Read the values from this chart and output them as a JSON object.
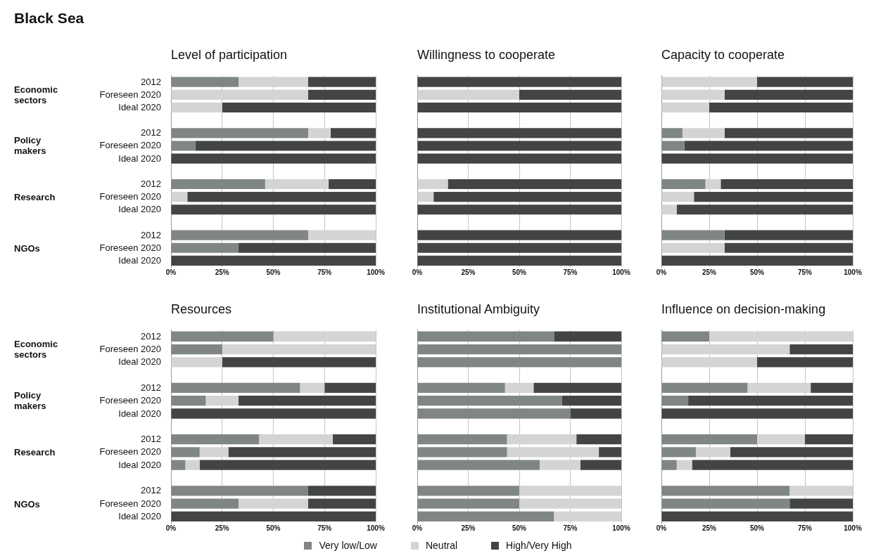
{
  "chart_data": [
    {
      "type": "other",
      "title": "Black Sea"
    },
    {
      "type": "bar",
      "title": "Level of participation",
      "orientation": "horizontal",
      "stacked": true,
      "grid": "x",
      "categories": [
        "2012",
        "Foreseen 2020",
        "Ideal 2020",
        null,
        "2012",
        "Foreseen 2020",
        "Ideal 2020",
        null,
        "2012",
        "Foreseen 2020",
        "Ideal 2020",
        null,
        "2012",
        "Foreseen 2020",
        "Ideal 2020"
      ],
      "annotations": [
        "Economic sectors",
        "Policy makers",
        "Research",
        "NGOs"
      ],
      "xlim": [
        0,
        100
      ],
      "xticks": [
        {
          "value": 0,
          "label": "0%"
        },
        {
          "value": 25,
          "label": "25%"
        },
        {
          "value": 50,
          "label": "50%"
        },
        {
          "value": 75,
          "label": "75%"
        },
        {
          "value": 100,
          "label": "100%"
        }
      ],
      "legend": false,
      "series": [
        {
          "color": "#808686",
          "values": [
            33,
            0,
            0,
            null,
            67,
            12,
            0,
            null,
            46,
            0,
            0,
            null,
            67,
            33,
            0
          ]
        },
        {
          "color": "#d4d4d4",
          "values": [
            34,
            67,
            25,
            null,
            11,
            0,
            0,
            null,
            31,
            8,
            0,
            null,
            33,
            0,
            0
          ]
        },
        {
          "color": "#434544",
          "values": [
            33,
            33,
            75,
            null,
            22,
            88,
            100,
            null,
            23,
            92,
            100,
            null,
            0,
            67,
            100
          ]
        }
      ]
    },
    {
      "type": "bar",
      "title": "Willingness to cooperate",
      "orientation": "horizontal",
      "stacked": true,
      "grid": "x",
      "tick_labels": "x",
      "categories": [
        null,
        null,
        null,
        null,
        null,
        null,
        null,
        null,
        null,
        null,
        null,
        null,
        null,
        null,
        null
      ],
      "xlim": [
        0,
        100
      ],
      "xticks": [
        {
          "value": 0,
          "label": "0%"
        },
        {
          "value": 25,
          "label": "25%"
        },
        {
          "value": 50,
          "label": "50%"
        },
        {
          "value": 75,
          "label": "75%"
        },
        {
          "value": 100,
          "label": "100%"
        }
      ],
      "legend": false,
      "series": [
        {
          "color": "#808686",
          "values": [
            0,
            0,
            0,
            null,
            0,
            0,
            0,
            null,
            0,
            0,
            0,
            null,
            0,
            0,
            0
          ]
        },
        {
          "color": "#d4d4d4",
          "values": [
            0,
            50,
            0,
            null,
            0,
            0,
            0,
            null,
            15,
            8,
            0,
            null,
            0,
            0,
            0
          ]
        },
        {
          "color": "#434544",
          "values": [
            100,
            50,
            100,
            null,
            100,
            100,
            100,
            null,
            85,
            92,
            100,
            null,
            100,
            100,
            100
          ]
        }
      ]
    },
    {
      "type": "bar",
      "title": "Capacity to cooperate",
      "orientation": "horizontal",
      "stacked": true,
      "grid": "x",
      "tick_labels": "x",
      "categories": [
        null,
        null,
        null,
        null,
        null,
        null,
        null,
        null,
        null,
        null,
        null,
        null,
        null,
        null,
        null
      ],
      "xlim": [
        0,
        100
      ],
      "xticks": [
        {
          "value": 0,
          "label": "0%"
        },
        {
          "value": 25,
          "label": "25%"
        },
        {
          "value": 50,
          "label": "50%"
        },
        {
          "value": 75,
          "label": "75%"
        },
        {
          "value": 100,
          "label": "100%"
        }
      ],
      "legend": false,
      "series": [
        {
          "color": "#808686",
          "values": [
            0,
            0,
            0,
            null,
            11,
            12,
            0,
            null,
            23,
            0,
            0,
            null,
            33,
            0,
            0
          ]
        },
        {
          "color": "#d4d4d4",
          "values": [
            50,
            33,
            25,
            null,
            22,
            0,
            0,
            null,
            8,
            17,
            8,
            null,
            0,
            33,
            0
          ]
        },
        {
          "color": "#434544",
          "values": [
            50,
            67,
            75,
            null,
            67,
            88,
            100,
            null,
            69,
            83,
            92,
            null,
            67,
            67,
            100
          ]
        }
      ]
    },
    {
      "type": "bar",
      "title": "Resources",
      "orientation": "horizontal",
      "stacked": true,
      "grid": "x",
      "categories": [
        "2012",
        "Foreseen 2020",
        "Ideal 2020",
        null,
        "2012",
        "Foreseen 2020",
        "Ideal 2020",
        null,
        "2012",
        "Foreseen 2020",
        "Ideal 2020",
        null,
        "2012",
        "Foreseen 2020",
        "Ideal 2020"
      ],
      "annotations": [
        "Economic sectors",
        "Policy makers",
        "Research",
        "NGOs"
      ],
      "xlim": [
        0,
        100
      ],
      "xticks": [
        {
          "value": 0,
          "label": "0%"
        },
        {
          "value": 25,
          "label": "25%"
        },
        {
          "value": 50,
          "label": "50%"
        },
        {
          "value": 75,
          "label": "75%"
        },
        {
          "value": 100,
          "label": "100%"
        }
      ],
      "legend": false,
      "series": [
        {
          "color": "#808686",
          "values": [
            50,
            25,
            0,
            null,
            63,
            17,
            0,
            null,
            43,
            14,
            7,
            null,
            67,
            33,
            0
          ]
        },
        {
          "color": "#d4d4d4",
          "values": [
            50,
            75,
            25,
            null,
            12,
            16,
            0,
            null,
            36,
            14,
            7,
            null,
            0,
            34,
            0
          ]
        },
        {
          "color": "#434544",
          "values": [
            0,
            0,
            75,
            null,
            25,
            67,
            100,
            null,
            21,
            72,
            86,
            null,
            33,
            33,
            100
          ]
        }
      ]
    },
    {
      "type": "bar",
      "title": "Institutional Ambiguity",
      "orientation": "horizontal",
      "stacked": true,
      "grid": "x",
      "tick_labels": "x",
      "categories": [
        null,
        null,
        null,
        null,
        null,
        null,
        null,
        null,
        null,
        null,
        null,
        null,
        null,
        null,
        null
      ],
      "xlim": [
        0,
        100
      ],
      "xticks": [
        {
          "value": 0,
          "label": "0%"
        },
        {
          "value": 25,
          "label": "25%"
        },
        {
          "value": 50,
          "label": "50%"
        },
        {
          "value": 75,
          "label": "75%"
        },
        {
          "value": 100,
          "label": "100%"
        }
      ],
      "legend": false,
      "series": [
        {
          "color": "#808686",
          "values": [
            67,
            100,
            100,
            null,
            43,
            71,
            75,
            null,
            44,
            44,
            60,
            null,
            50,
            50,
            67
          ]
        },
        {
          "color": "#d4d4d4",
          "values": [
            0,
            0,
            0,
            null,
            14,
            0,
            0,
            null,
            34,
            45,
            20,
            null,
            50,
            50,
            33
          ]
        },
        {
          "color": "#434544",
          "values": [
            33,
            0,
            0,
            null,
            43,
            29,
            25,
            null,
            22,
            11,
            20,
            null,
            0,
            0,
            0
          ]
        }
      ]
    },
    {
      "type": "bar",
      "title": "Influence on decision-making",
      "orientation": "horizontal",
      "stacked": true,
      "grid": "x",
      "tick_labels": "x",
      "categories": [
        null,
        null,
        null,
        null,
        null,
        null,
        null,
        null,
        null,
        null,
        null,
        null,
        null,
        null,
        null
      ],
      "xlim": [
        0,
        100
      ],
      "xticks": [
        {
          "value": 0,
          "label": "0%"
        },
        {
          "value": 25,
          "label": "25%"
        },
        {
          "value": 50,
          "label": "50%"
        },
        {
          "value": 75,
          "label": "75%"
        },
        {
          "value": 100,
          "label": "100%"
        }
      ],
      "legend": "bottom",
      "series": [
        {
          "name": "Very low/Low",
          "color": "#808686",
          "values": [
            25,
            0,
            0,
            null,
            45,
            14,
            0,
            null,
            50,
            18,
            8,
            null,
            67,
            67,
            0
          ]
        },
        {
          "name": "Neutral",
          "color": "#d4d4d4",
          "values": [
            75,
            67,
            50,
            null,
            33,
            0,
            0,
            null,
            25,
            18,
            8,
            null,
            33,
            0,
            0
          ]
        },
        {
          "name": "High/Very High",
          "color": "#434544",
          "values": [
            0,
            33,
            50,
            null,
            22,
            86,
            100,
            null,
            25,
            64,
            84,
            null,
            0,
            33,
            100
          ]
        }
      ]
    }
  ]
}
